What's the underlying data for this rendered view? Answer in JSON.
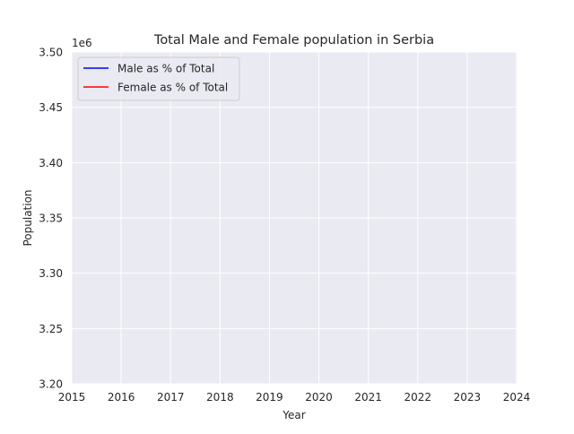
{
  "chart_data": {
    "type": "line",
    "title": "Total Male and Female population in Serbia",
    "xlabel": "Year",
    "ylabel": "Population",
    "y_offset_label": "1e6",
    "xlim": [
      2015,
      2024
    ],
    "ylim": [
      3.2,
      3.5
    ],
    "x_ticks": [
      "2015",
      "2016",
      "2017",
      "2018",
      "2019",
      "2020",
      "2021",
      "2022",
      "2023",
      "2024"
    ],
    "y_ticks": [
      "3.20",
      "3.25",
      "3.30",
      "3.35",
      "3.40",
      "3.45",
      "3.50"
    ],
    "grid": true,
    "legend_position": "top-left",
    "series": [
      {
        "name": "Male as % of Total",
        "color": "#0000ff",
        "x": [],
        "y": []
      },
      {
        "name": "Female as % of Total",
        "color": "#ff0000",
        "x": [],
        "y": []
      }
    ],
    "colors": {
      "plot_background": "#eaeaf2",
      "grid": "#ffffff"
    }
  }
}
